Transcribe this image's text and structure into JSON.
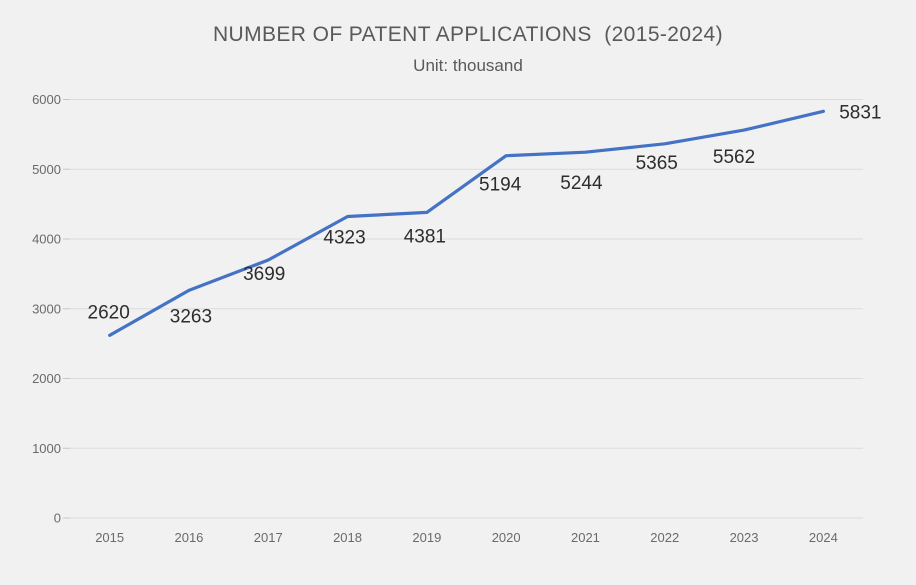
{
  "header": {
    "title": "NUMBER OF PATENT APPLICATIONS  (2015-2024)",
    "subtitle": "Unit: thousand"
  },
  "chart_data": {
    "type": "line",
    "title": "NUMBER OF PATENT APPLICATIONS  (2015-2024)",
    "subtitle": "Unit: thousand",
    "categories": [
      "2015",
      "2016",
      "2017",
      "2018",
      "2019",
      "2020",
      "2021",
      "2022",
      "2023",
      "2024"
    ],
    "values": [
      2620,
      3263,
      3699,
      4323,
      4381,
      5194,
      5244,
      5365,
      5562,
      5831
    ],
    "xlabel": "",
    "ylabel": "",
    "ylim": [
      0,
      6000
    ],
    "yticks": [
      0,
      1000,
      2000,
      3000,
      4000,
      5000,
      6000
    ],
    "grid": "horizontal",
    "legend": "none",
    "show_data_labels": true,
    "label_placements": [
      "above",
      "below",
      "below",
      "below",
      "below",
      "below",
      "below",
      "below",
      "below",
      "right"
    ],
    "colors": {
      "line": "#4472c4",
      "data_label": "#2d2d2d",
      "axis_text": "#6a6a6a",
      "title_text": "#595959",
      "gridline": "#dcdcdc",
      "tick_mark": "#c6c6c6",
      "background": "#f1f1f1"
    }
  }
}
